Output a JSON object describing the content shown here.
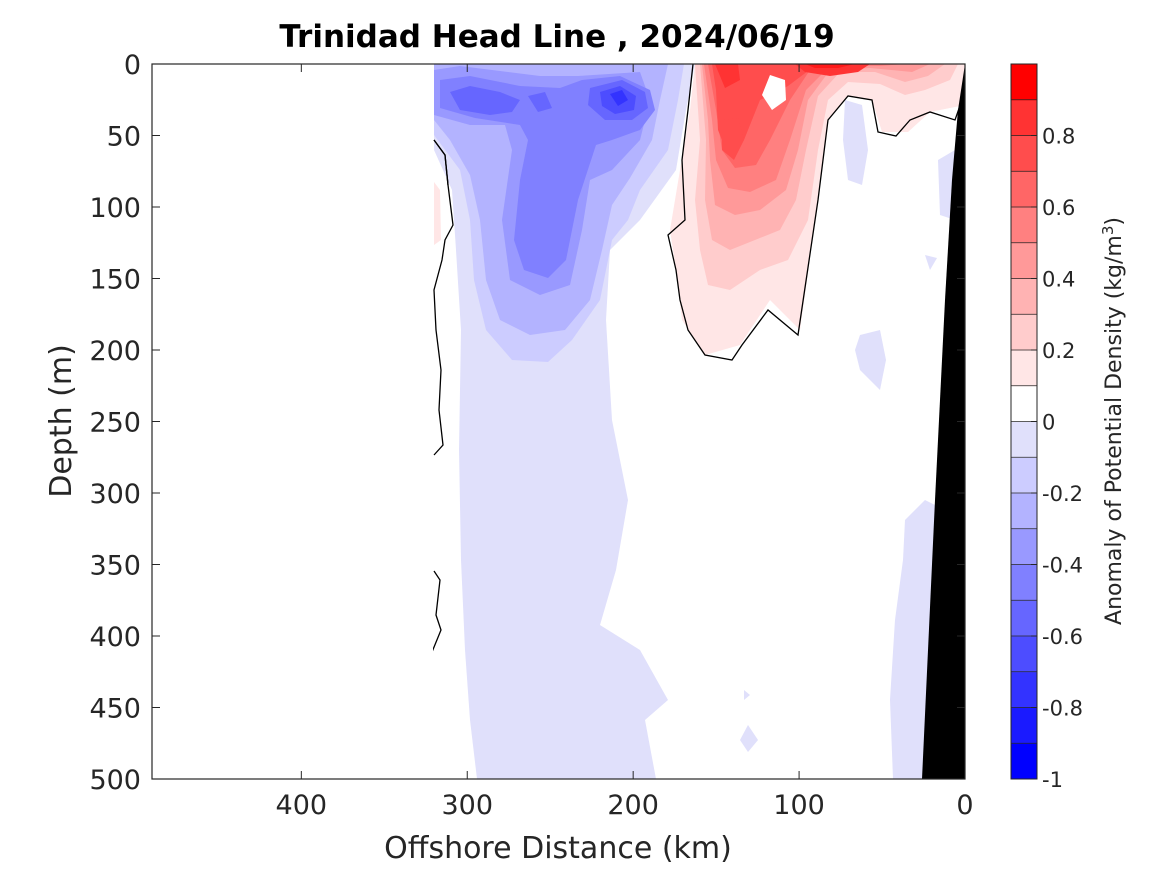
{
  "chart_data": {
    "type": "heatmap",
    "title": "Trinidad Head Line , 2024/06/19",
    "xlabel": "Offshore Distance (km)",
    "ylabel": "Depth (m)",
    "xlim": [
      490,
      0
    ],
    "ylim": [
      500,
      0
    ],
    "x_ticks": [
      "400",
      "300",
      "200",
      "100",
      "0"
    ],
    "y_ticks": [
      "0",
      "50",
      "100",
      "150",
      "200",
      "250",
      "300",
      "350",
      "400",
      "450",
      "500"
    ],
    "colorbar": {
      "label": "Anomaly of Potential Density (kg/m",
      "label_superscript": "3",
      "label_close": ")",
      "range": [
        -1,
        1
      ],
      "levels": 20,
      "ticks": [
        "0.8",
        "0.6",
        "0.4",
        "0.2",
        "0",
        "-0.2",
        "-0.4",
        "-0.6",
        "-0.8",
        "-1"
      ],
      "colors": [
        "#0000ff",
        "#1a1aff",
        "#3333ff",
        "#4d4dff",
        "#6666ff",
        "#8080ff",
        "#9999ff",
        "#b3b3ff",
        "#ccccff",
        "#e0e0fb",
        "#ffffff",
        "#ffe6e6",
        "#ffcccc",
        "#ffb3b3",
        "#ff9999",
        "#ff8080",
        "#ff6666",
        "#ff4d4d",
        "#ff3333",
        "#ff0000"
      ]
    },
    "data_extent_km": [
      322,
      0
    ],
    "bathymetry_color": "#000000",
    "features": [
      {
        "name": "offshore negative anomaly core",
        "x_km": 265,
        "depth_m": 130,
        "anomaly": -0.5
      },
      {
        "name": "near-surface negative anomaly",
        "x_km": 210,
        "depth_m": 25,
        "anomaly": -0.7
      },
      {
        "name": "positive anomaly core",
        "x_km": 140,
        "depth_m": 60,
        "anomaly": 0.6
      },
      {
        "name": "surface positive anomaly",
        "x_km": 85,
        "depth_m": 3,
        "anomaly": 0.9
      }
    ]
  }
}
